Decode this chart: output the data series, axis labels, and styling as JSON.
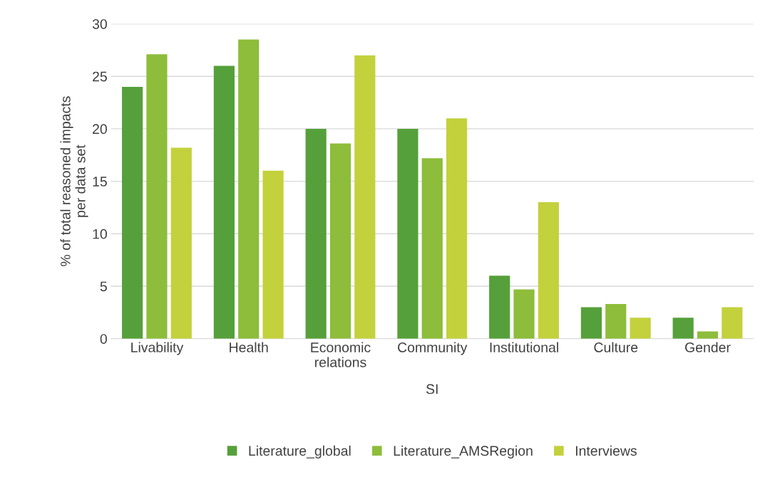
{
  "chart_data": {
    "type": "bar",
    "xlabel": "SI",
    "ylabel": "% of total reasoned impacts\nper data set",
    "categories": [
      "Livability",
      "Health",
      "Economic\nrelations",
      "Community",
      "Institutional",
      "Culture",
      "Gender"
    ],
    "series": [
      {
        "name": "Literature_global",
        "color": "#55a03a",
        "values": [
          24,
          26,
          20,
          20,
          6,
          3,
          2
        ]
      },
      {
        "name": "Literature_AMSRegion",
        "color": "#8dbd3a",
        "values": [
          27.1,
          28.5,
          18.6,
          17.2,
          4.7,
          3.3,
          0.7
        ]
      },
      {
        "name": "Interviews",
        "color": "#c3d13c",
        "values": [
          18.2,
          16,
          27,
          21,
          13,
          2,
          3
        ]
      }
    ],
    "ylim": [
      0,
      30
    ],
    "yticks": [
      0,
      5,
      10,
      15,
      20,
      25,
      30
    ],
    "grid": "y",
    "legend": "bottom"
  }
}
